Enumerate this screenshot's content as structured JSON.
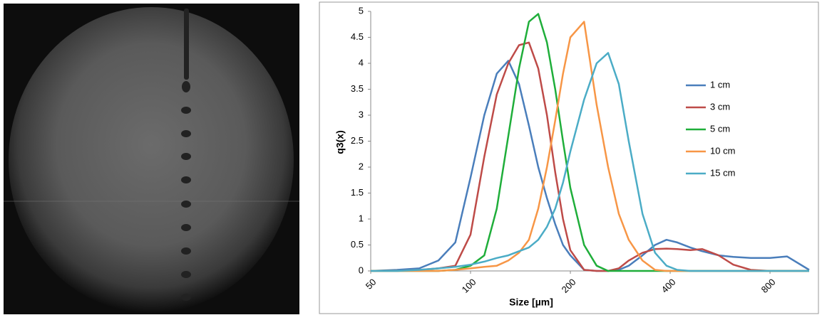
{
  "chart_data": {
    "type": "line",
    "y_label": "q3(x)",
    "x_label": "Size [µm]",
    "x_scale": "log",
    "grid": false,
    "legend": "right",
    "xlim": [
      50,
      1050
    ],
    "xticks": [
      50,
      100,
      200,
      400,
      800
    ],
    "ylim": [
      0,
      5
    ],
    "yticks": [
      0,
      0.5,
      1,
      1.5,
      2,
      2.5,
      3,
      3.5,
      4,
      4.5,
      5
    ],
    "x": [
      50,
      60,
      70,
      80,
      90,
      100,
      110,
      120,
      130,
      140,
      150,
      160,
      170,
      180,
      190,
      200,
      220,
      240,
      260,
      280,
      300,
      330,
      360,
      390,
      420,
      460,
      500,
      560,
      620,
      700,
      800,
      900,
      1050
    ],
    "series": [
      {
        "name": "1 cm",
        "color": "#4a7ebb",
        "values": [
          0,
          0.02,
          0.05,
          0.2,
          0.55,
          1.8,
          3.0,
          3.8,
          4.05,
          3.6,
          2.8,
          2.0,
          1.4,
          0.9,
          0.5,
          0.3,
          0.02,
          0,
          0,
          0.02,
          0.1,
          0.3,
          0.5,
          0.6,
          0.55,
          0.45,
          0.38,
          0.3,
          0.27,
          0.25,
          0.25,
          0.28,
          0.02
        ]
      },
      {
        "name": "3 cm",
        "color": "#be4b48",
        "values": [
          0,
          0,
          0.02,
          0.05,
          0.1,
          0.7,
          2.2,
          3.4,
          4.0,
          4.35,
          4.4,
          3.9,
          3.0,
          1.9,
          1.0,
          0.4,
          0.02,
          0,
          0,
          0.05,
          0.2,
          0.35,
          0.42,
          0.43,
          0.42,
          0.4,
          0.42,
          0.3,
          0.12,
          0.02,
          0,
          0,
          0
        ]
      },
      {
        "name": "5 cm",
        "color": "#1fae3a",
        "values": [
          0,
          0,
          0,
          0,
          0.02,
          0.1,
          0.3,
          1.2,
          2.6,
          3.9,
          4.8,
          4.95,
          4.4,
          3.5,
          2.5,
          1.6,
          0.5,
          0.1,
          0,
          0,
          0,
          0,
          0,
          0,
          0,
          0,
          0,
          0,
          0,
          0,
          0,
          0,
          0
        ]
      },
      {
        "name": "10 cm",
        "color": "#f79646",
        "values": [
          0,
          0,
          0,
          0,
          0.02,
          0.05,
          0.08,
          0.1,
          0.2,
          0.35,
          0.6,
          1.2,
          2.0,
          2.9,
          3.8,
          4.5,
          4.8,
          3.2,
          2.0,
          1.1,
          0.6,
          0.2,
          0.02,
          0,
          0,
          0,
          0,
          0,
          0,
          0,
          0,
          0,
          0
        ]
      },
      {
        "name": "15 cm",
        "color": "#4bacc6",
        "values": [
          0,
          0,
          0.02,
          0.05,
          0.08,
          0.12,
          0.18,
          0.25,
          0.3,
          0.38,
          0.45,
          0.6,
          0.85,
          1.2,
          1.7,
          2.3,
          3.3,
          4.0,
          4.2,
          3.6,
          2.5,
          1.1,
          0.35,
          0.1,
          0.02,
          0,
          0,
          0,
          0,
          0,
          0,
          0,
          0
        ]
      }
    ]
  }
}
